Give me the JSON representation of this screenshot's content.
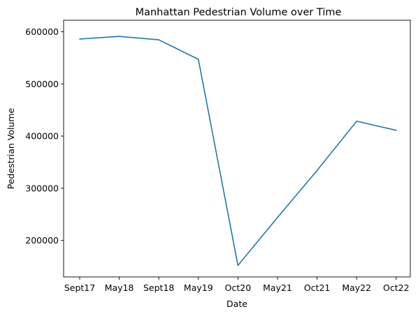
{
  "chart_data": {
    "type": "line",
    "title": "Manhattan Pedestrian Volume over Time",
    "xlabel": "Date",
    "ylabel": "Pedestrian Volume",
    "categories": [
      "Sept17",
      "May18",
      "Sept18",
      "May19",
      "Oct20",
      "May21",
      "Oct21",
      "May22",
      "Oct22"
    ],
    "series": [
      {
        "values": [
          586000,
          591000,
          584500,
          547000,
          152000,
          244000,
          334000,
          428500,
          411000
        ],
        "color": "#1f77b4"
      }
    ],
    "ylim": [
      130000,
      622000
    ],
    "yticks": [
      200000,
      300000,
      400000,
      500000,
      600000
    ],
    "grid": false,
    "legend": "none"
  }
}
